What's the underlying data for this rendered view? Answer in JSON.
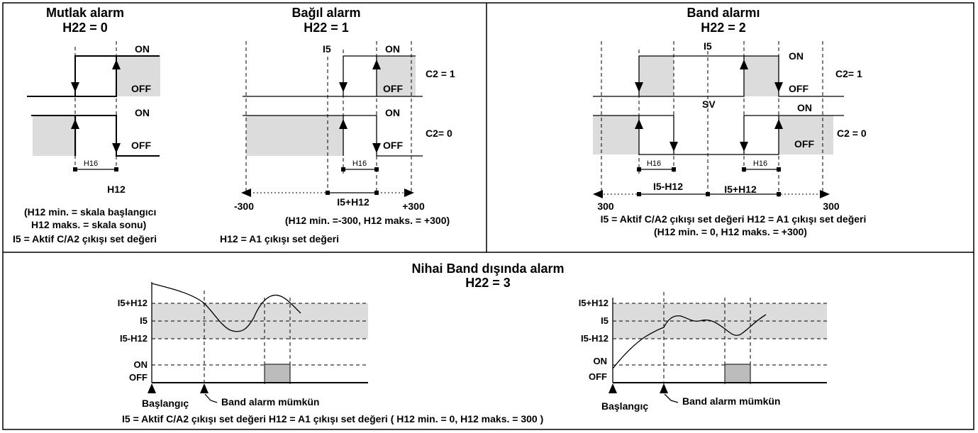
{
  "mutlak": {
    "title": "Mutlak alarm",
    "h22": "H22 = 0",
    "on1": "ON",
    "off1": "OFF",
    "on2": "ON",
    "off2": "OFF",
    "h16": "H16",
    "h12": "H12",
    "note1": "(H12 min.  = skala başlangıcı",
    "note2": "H12 maks. = skala sonu)",
    "i5note": "I5    = Aktif C/A2 çıkışı set değeri"
  },
  "bagil": {
    "title": "Bağıl alarm",
    "h22": "H22 = 1",
    "i5": "I5",
    "on1": "ON",
    "off1": "OFF",
    "on2": "ON",
    "off2": "OFF",
    "c2a": "C2 = 1",
    "c2b": "C2= 0",
    "h16": "H16",
    "minus300": "-300",
    "i5h12": "I5+H12",
    "plus300": "+300",
    "range": "(H12 min.  =-300, H12 maks. = +300)",
    "h12note": "H12 =  A1 çıkışı set değeri"
  },
  "band": {
    "title": "Band alarmı",
    "h22": "H22 = 2",
    "i5": "I5",
    "on1": "ON",
    "off1": "OFF",
    "sv": "SV",
    "on2": "ON",
    "off2": "OFF",
    "c2a": "C2= 1",
    "c2b": "C2 = 0",
    "h16a": "H16",
    "h16b": "H16",
    "left300": "300",
    "i5m": "I5-H12",
    "i5p": "I5+H12",
    "right300": "300",
    "note1": "I5 = Aktif C/A2 çıkışı set değeri        H12 = A1 çıkışı set değeri",
    "note2": "(H12 min. = 0,  H12 maks. = +300)"
  },
  "nihai": {
    "title": "Nihai Band dışında alarm",
    "h22": "H22 = 3",
    "i5p": "I5+H12",
    "i5": "I5",
    "i5m": "I5-H12",
    "on": "ON",
    "off": "OFF",
    "start": "Başlangıç",
    "enable": "Band alarm mümkün",
    "footer": "I5 = Aktif C/A2 çıkışı set değeri       H12 = A1 çıkışı set değeri  ( H12 min. = 0,  H12 maks. = 300 )"
  }
}
